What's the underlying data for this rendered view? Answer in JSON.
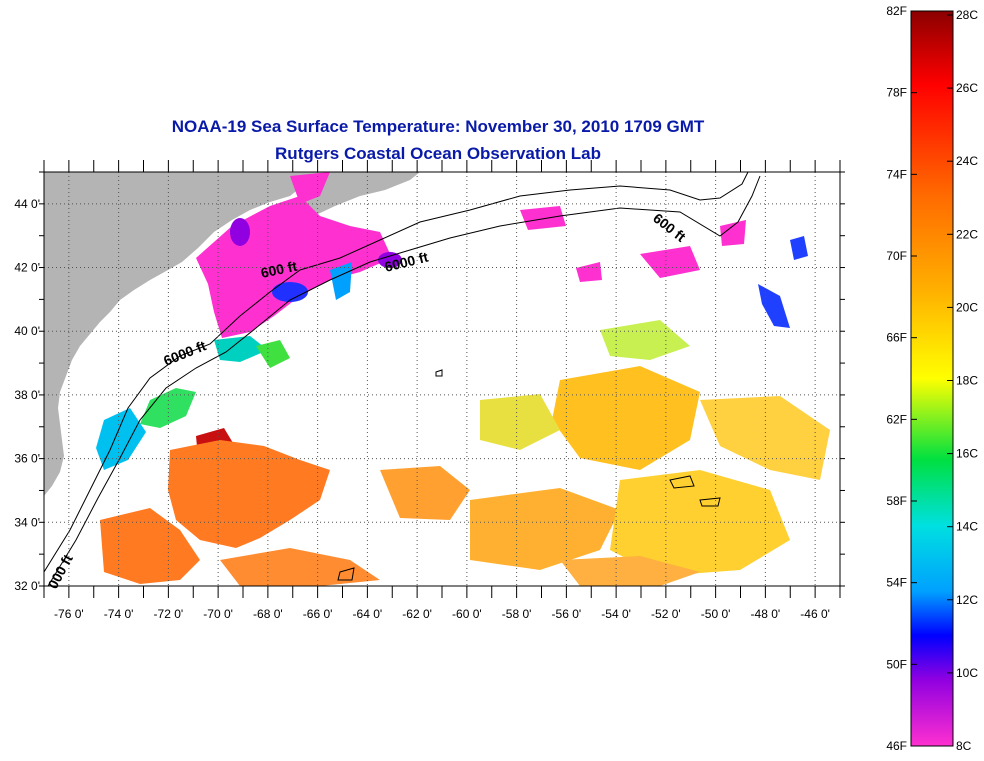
{
  "title": {
    "line1": "NOAA-19 Sea Surface Temperature:  November 30, 2010 1709 GMT",
    "line2": "Rutgers Coastal Ocean Observation Lab"
  },
  "map": {
    "lat_ticks": [
      "44 0'",
      "42 0'",
      "40 0'",
      "38 0'",
      "36 0'",
      "34 0'",
      "32 0'"
    ],
    "lon_ticks": [
      "-76 0'",
      "-74 0'",
      "-72 0'",
      "-70 0'",
      "-68 0'",
      "-66 0'",
      "-64 0'",
      "-62 0'",
      "-60 0'",
      "-58 0'",
      "-56 0'",
      "-54 0'",
      "-52 0'",
      "-50 0'",
      "-48 0'",
      "-46 0'"
    ],
    "lat_range": [
      32,
      45
    ],
    "lon_range": [
      -77,
      -45
    ],
    "land_color": "#b4b4b4",
    "contour_labels": [
      {
        "text": "600 ft"
      },
      {
        "text": "6000 ft"
      },
      {
        "text": "6000 ft"
      },
      {
        "text": "600 ft"
      },
      {
        "text": "000 ft"
      }
    ]
  },
  "colorbar": {
    "fahrenheit": [
      "82F",
      "78F",
      "74F",
      "70F",
      "66F",
      "62F",
      "58F",
      "54F",
      "50F",
      "46F"
    ],
    "celsius": [
      "28C",
      "26C",
      "24C",
      "22C",
      "20C",
      "18C",
      "16C",
      "14C",
      "12C",
      "10C",
      "8C"
    ],
    "gradient_colors": [
      "#8b0000",
      "#ff0000",
      "#ff6a00",
      "#ffb000",
      "#ffff00",
      "#00e040",
      "#00e0e0",
      "#00a0ff",
      "#0000ff",
      "#9000e0",
      "#ff30d0"
    ]
  }
}
